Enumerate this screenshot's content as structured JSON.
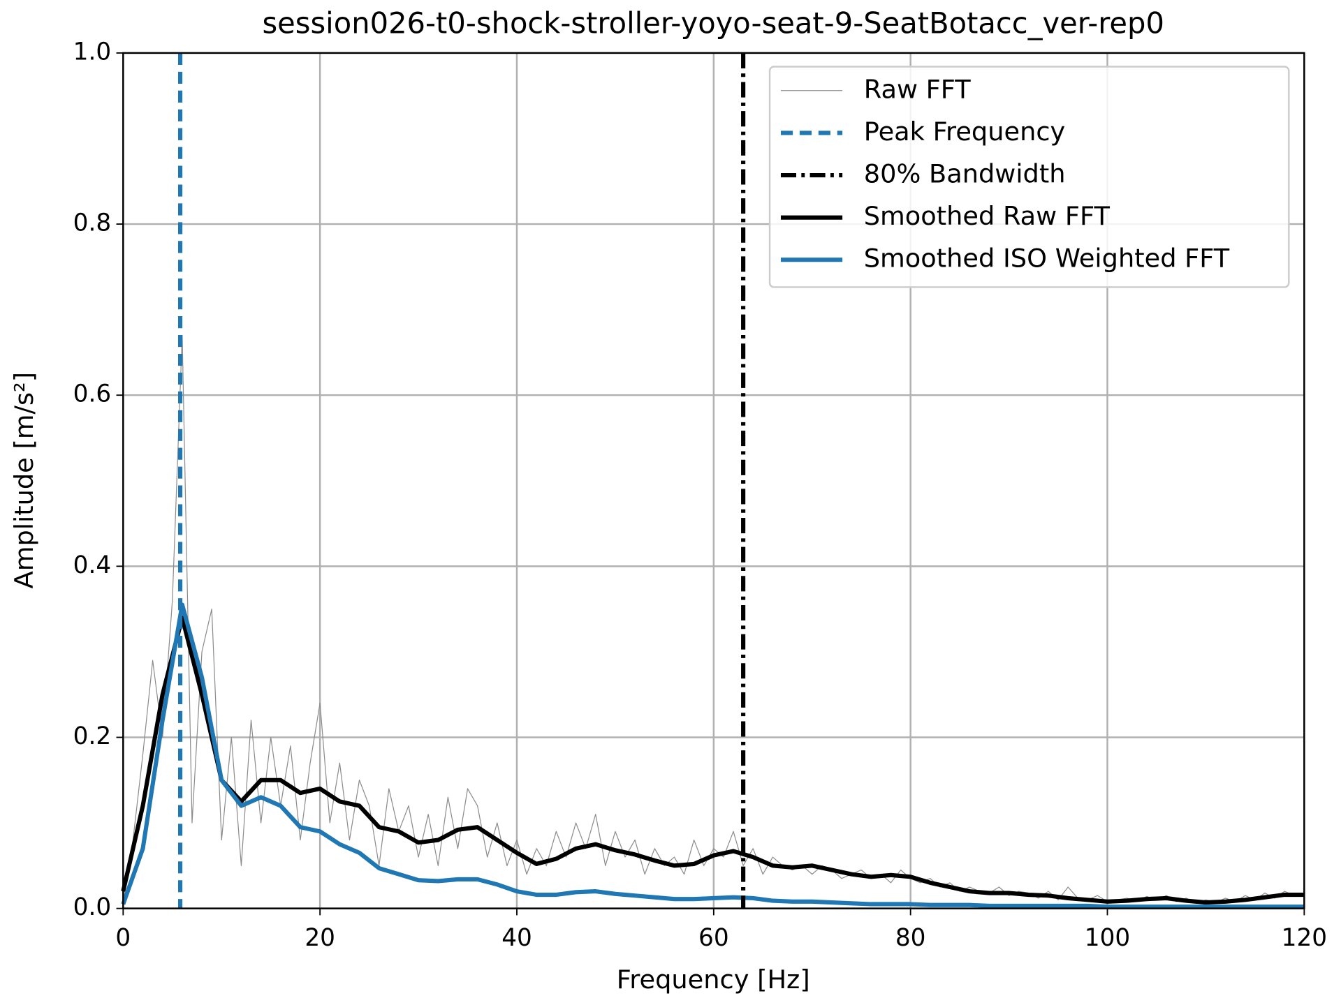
{
  "chart_data": {
    "type": "line",
    "title": "session026-t0-shock-stroller-yoyo-seat-9-SeatBotacc_ver-rep0",
    "x_label": "Frequency [Hz]",
    "y_label": "Amplitude [m/s²]",
    "xlim": [
      0,
      120
    ],
    "ylim": [
      0,
      1.0
    ],
    "xticks": [
      0,
      20,
      40,
      60,
      80,
      100,
      120
    ],
    "yticks": [
      {
        "value": 0,
        "label": "0.0"
      },
      0.2,
      0.4,
      0.6,
      0.8,
      {
        "value": 1,
        "label": "1.0"
      }
    ],
    "grid": true,
    "legend": "upper right",
    "series": [
      {
        "name": "Raw FFT",
        "color": "#8c8c8c",
        "width": 1,
        "x": [
          0,
          1,
          2,
          3,
          4,
          5,
          6,
          7,
          8,
          9,
          10,
          11,
          12,
          13,
          14,
          15,
          16,
          17,
          18,
          19,
          20,
          21,
          22,
          23,
          24,
          25,
          26,
          27,
          28,
          29,
          30,
          31,
          32,
          33,
          34,
          35,
          36,
          37,
          38,
          39,
          40,
          41,
          42,
          43,
          44,
          45,
          46,
          47,
          48,
          49,
          50,
          51,
          52,
          53,
          54,
          55,
          56,
          57,
          58,
          59,
          60,
          61,
          62,
          63,
          64,
          65,
          66,
          67,
          68,
          69,
          70,
          71,
          72,
          73,
          74,
          75,
          76,
          77,
          78,
          79,
          80,
          81,
          82,
          83,
          84,
          85,
          86,
          87,
          88,
          89,
          90,
          91,
          92,
          93,
          94,
          95,
          96,
          97,
          98,
          99,
          100,
          101,
          102,
          103,
          104,
          105,
          106,
          107,
          108,
          109,
          110,
          111,
          112,
          113,
          114,
          115,
          116,
          117,
          118,
          119,
          120
        ],
        "values": [
          0.01,
          0.08,
          0.18,
          0.29,
          0.2,
          0.36,
          0.67,
          0.1,
          0.3,
          0.35,
          0.08,
          0.2,
          0.05,
          0.22,
          0.1,
          0.2,
          0.12,
          0.19,
          0.08,
          0.17,
          0.24,
          0.1,
          0.17,
          0.08,
          0.15,
          0.12,
          0.05,
          0.14,
          0.09,
          0.12,
          0.06,
          0.11,
          0.05,
          0.13,
          0.07,
          0.14,
          0.12,
          0.06,
          0.1,
          0.05,
          0.08,
          0.04,
          0.07,
          0.05,
          0.09,
          0.06,
          0.1,
          0.07,
          0.11,
          0.05,
          0.09,
          0.06,
          0.08,
          0.04,
          0.07,
          0.05,
          0.06,
          0.04,
          0.08,
          0.05,
          0.07,
          0.06,
          0.09,
          0.05,
          0.07,
          0.04,
          0.06,
          0.05,
          0.045,
          0.05,
          0.04,
          0.05,
          0.045,
          0.035,
          0.04,
          0.045,
          0.035,
          0.04,
          0.03,
          0.045,
          0.035,
          0.03,
          0.035,
          0.025,
          0.03,
          0.02,
          0.025,
          0.02,
          0.018,
          0.025,
          0.015,
          0.02,
          0.018,
          0.012,
          0.02,
          0.01,
          0.025,
          0.012,
          0.01,
          0.015,
          0.008,
          0.01,
          0.012,
          0.008,
          0.014,
          0.01,
          0.015,
          0.008,
          0.012,
          0.006,
          0.01,
          0.007,
          0.012,
          0.008,
          0.015,
          0.01,
          0.018,
          0.012,
          0.02,
          0.015,
          0.018
        ]
      },
      {
        "name": "Smoothed Raw FFT",
        "color": "#000000",
        "width": 5,
        "x": [
          0,
          2,
          4,
          6,
          8,
          10,
          12,
          14,
          16,
          18,
          20,
          22,
          24,
          26,
          28,
          30,
          32,
          34,
          36,
          38,
          40,
          42,
          44,
          46,
          48,
          50,
          52,
          54,
          56,
          58,
          60,
          62,
          64,
          66,
          68,
          70,
          72,
          74,
          76,
          78,
          80,
          82,
          84,
          86,
          88,
          90,
          92,
          94,
          96,
          98,
          100,
          102,
          104,
          106,
          108,
          110,
          112,
          114,
          116,
          118,
          120
        ],
        "values": [
          0.02,
          0.12,
          0.25,
          0.34,
          0.25,
          0.15,
          0.125,
          0.15,
          0.15,
          0.135,
          0.14,
          0.125,
          0.12,
          0.095,
          0.09,
          0.077,
          0.08,
          0.092,
          0.095,
          0.08,
          0.065,
          0.052,
          0.058,
          0.07,
          0.075,
          0.068,
          0.063,
          0.056,
          0.05,
          0.052,
          0.062,
          0.067,
          0.06,
          0.05,
          0.048,
          0.05,
          0.045,
          0.04,
          0.037,
          0.039,
          0.037,
          0.03,
          0.025,
          0.02,
          0.018,
          0.018,
          0.016,
          0.015,
          0.012,
          0.01,
          0.008,
          0.009,
          0.011,
          0.012,
          0.009,
          0.007,
          0.008,
          0.01,
          0.013,
          0.016,
          0.016
        ]
      },
      {
        "name": "Smoothed ISO Weighted FFT",
        "color": "#1f77b4",
        "width": 5,
        "x": [
          0,
          2,
          4,
          6,
          8,
          10,
          12,
          14,
          16,
          18,
          20,
          22,
          24,
          26,
          28,
          30,
          32,
          34,
          36,
          38,
          40,
          42,
          44,
          46,
          48,
          50,
          52,
          54,
          56,
          58,
          60,
          62,
          64,
          66,
          68,
          70,
          72,
          74,
          76,
          78,
          80,
          82,
          84,
          86,
          88,
          90,
          92,
          94,
          96,
          98,
          100,
          102,
          104,
          106,
          108,
          110,
          112,
          114,
          116,
          118,
          120
        ],
        "values": [
          0.005,
          0.07,
          0.22,
          0.355,
          0.27,
          0.15,
          0.12,
          0.13,
          0.12,
          0.095,
          0.09,
          0.075,
          0.065,
          0.047,
          0.04,
          0.033,
          0.032,
          0.034,
          0.034,
          0.028,
          0.02,
          0.016,
          0.016,
          0.019,
          0.02,
          0.017,
          0.015,
          0.013,
          0.011,
          0.011,
          0.012,
          0.013,
          0.012,
          0.009,
          0.008,
          0.008,
          0.007,
          0.006,
          0.005,
          0.005,
          0.005,
          0.004,
          0.004,
          0.004,
          0.003,
          0.003,
          0.003,
          0.003,
          0.003,
          0.003,
          0.002,
          0.002,
          0.002,
          0.002,
          0.002,
          0.002,
          0.002,
          0.002,
          0.002,
          0.002,
          0.002
        ]
      }
    ],
    "vlines": [
      {
        "name": "Peak Frequency",
        "color": "#1f77b4",
        "x": 5.8,
        "dash": "14 8"
      },
      {
        "name": "80% Bandwidth",
        "color": "#000000",
        "x": 63,
        "dash": "18 6 4 6"
      }
    ]
  }
}
